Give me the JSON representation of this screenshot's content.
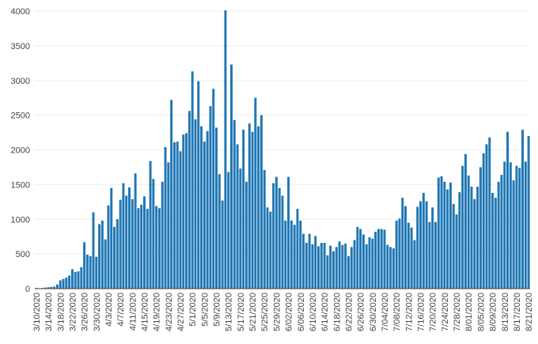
{
  "chart_data": {
    "type": "bar",
    "title": "",
    "xlabel": "",
    "ylabel": "",
    "ylim": [
      0,
      4000
    ],
    "yticks": [
      0,
      500,
      1000,
      1500,
      2000,
      2500,
      3000,
      3500,
      4000
    ],
    "grid": true,
    "legend": "none",
    "bar_color": "#1f77b4",
    "x_tick_labels": [
      "3/10/2020",
      "3/14/2020",
      "3/18/2020",
      "3/22/2020",
      "3/26/2020",
      "3/30/2020",
      "4/3/2020",
      "4/7/2020",
      "4/11/2020",
      "4/15/2020",
      "4/19/2020",
      "4/23/2020",
      "4/27/2020",
      "5/1/2020",
      "5/5/2020",
      "5/9/2020",
      "5/13/2020",
      "5/17/2020",
      "5/21/2020",
      "5/25/2020",
      "5/29/2020",
      "6/02/2020",
      "6/06/2020",
      "6/10/2020",
      "6/14/2020",
      "6/18/2020",
      "6/22/2020",
      "6/26/2020",
      "6/30/2020",
      "7/04/2020",
      "7/08/2020",
      "7/12/2020",
      "7/16/2020",
      "7/20/2020",
      "7/24/2020",
      "7/28/2020",
      "8/01/2020",
      "8/05/2020",
      "8/09/2020",
      "8/13/2020",
      "8/17/2020",
      "8/21/2020"
    ],
    "values": [
      10,
      5,
      8,
      15,
      20,
      25,
      30,
      60,
      120,
      140,
      160,
      190,
      280,
      240,
      250,
      310,
      670,
      490,
      470,
      1100,
      460,
      930,
      980,
      710,
      1200,
      1450,
      890,
      1000,
      1280,
      1520,
      1340,
      1460,
      1290,
      1660,
      1160,
      1210,
      1330,
      1150,
      1840,
      1580,
      1190,
      1160,
      1540,
      2040,
      1820,
      2720,
      2110,
      2120,
      1980,
      2220,
      2240,
      2560,
      3130,
      2440,
      2990,
      2340,
      2120,
      2270,
      2630,
      2880,
      2320,
      1650,
      1270,
      4010,
      1680,
      3230,
      2430,
      2080,
      1730,
      2290,
      1540,
      2380,
      2260,
      2750,
      2340,
      2500,
      1710,
      1170,
      1110,
      1520,
      1610,
      1450,
      1340,
      980,
      1610,
      980,
      920,
      1150,
      980,
      790,
      660,
      790,
      640,
      760,
      610,
      660,
      660,
      480,
      620,
      540,
      600,
      680,
      630,
      650,
      470,
      600,
      700,
      890,
      860,
      780,
      640,
      740,
      720,
      820,
      860,
      860,
      850,
      630,
      600,
      580,
      980,
      1010,
      1310,
      1190,
      950,
      880,
      700,
      1180,
      1260,
      1380,
      1260,
      960,
      1170,
      960,
      1600,
      1620,
      1540,
      1430,
      1530,
      1220,
      1070,
      1390,
      1770,
      1940,
      1630,
      1470,
      1290,
      1470,
      1750,
      1950,
      2080,
      2180,
      1380,
      1310,
      1540,
      1640,
      1830,
      2260,
      1820,
      1560,
      1770,
      1740,
      2290,
      1830,
      2200
    ]
  }
}
